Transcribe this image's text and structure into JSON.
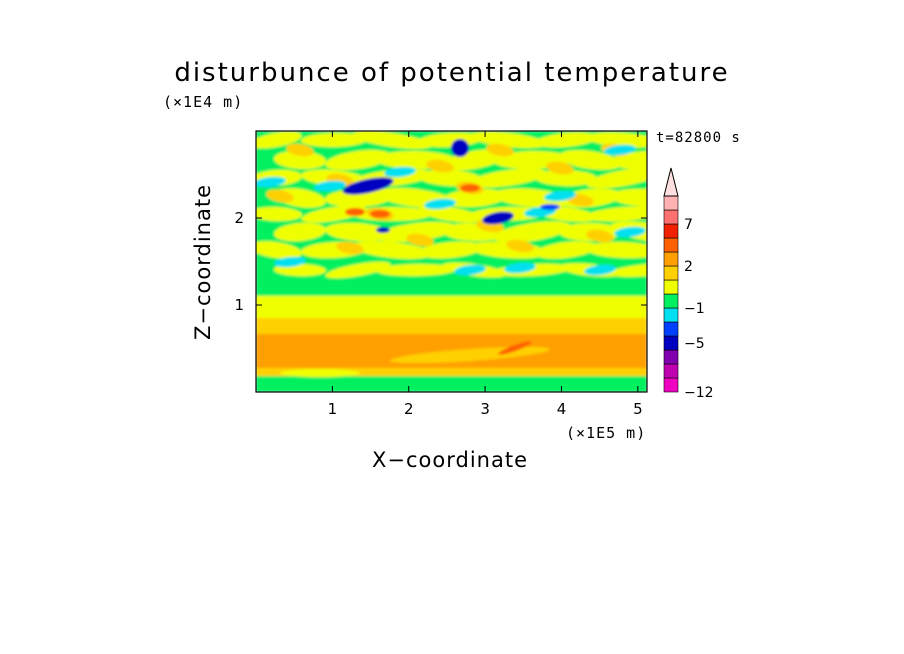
{
  "chart_data": {
    "type": "heatmap",
    "title": "disturbunce of potential temperature",
    "xlabel": "X−coordinate",
    "ylabel": "Z−coordinate",
    "x_unit": "(×1E5 m)",
    "y_unit": "(×1E4 m)",
    "time_label": "t=82800 s",
    "xlim": [
      0,
      5.12
    ],
    "ylim": [
      0,
      3.0
    ],
    "x_ticks": [
      1,
      2,
      3,
      4,
      5
    ],
    "y_ticks": [
      1,
      2
    ],
    "colorbar": {
      "colors": [
        "#f000c0",
        "#c000b0",
        "#8000b0",
        "#0000c0",
        "#0040ff",
        "#00e0f0",
        "#00f060",
        "#f0ff00",
        "#ffd000",
        "#ffa000",
        "#ff6000",
        "#f02000",
        "#ff7070",
        "#ffb0b0"
      ],
      "tick_labels": [
        "−12",
        "−5",
        "−1",
        "2",
        "7"
      ],
      "tick_levels": [
        0,
        3.5,
        6,
        9,
        12
      ],
      "extend": "max"
    },
    "field_bands": [
      {
        "z_range": [
          0.0,
          0.15
        ],
        "dominant": "green/cyan"
      },
      {
        "z_range": [
          0.15,
          0.6
        ],
        "dominant": "orange"
      },
      {
        "z_range": [
          0.6,
          1.1
        ],
        "dominant": "yellow"
      },
      {
        "z_range": [
          1.1,
          1.4
        ],
        "dominant": "green"
      },
      {
        "z_range": [
          1.4,
          3.0
        ],
        "dominant": "mixed green/yellow/orange with cyan and blue cells"
      }
    ]
  }
}
